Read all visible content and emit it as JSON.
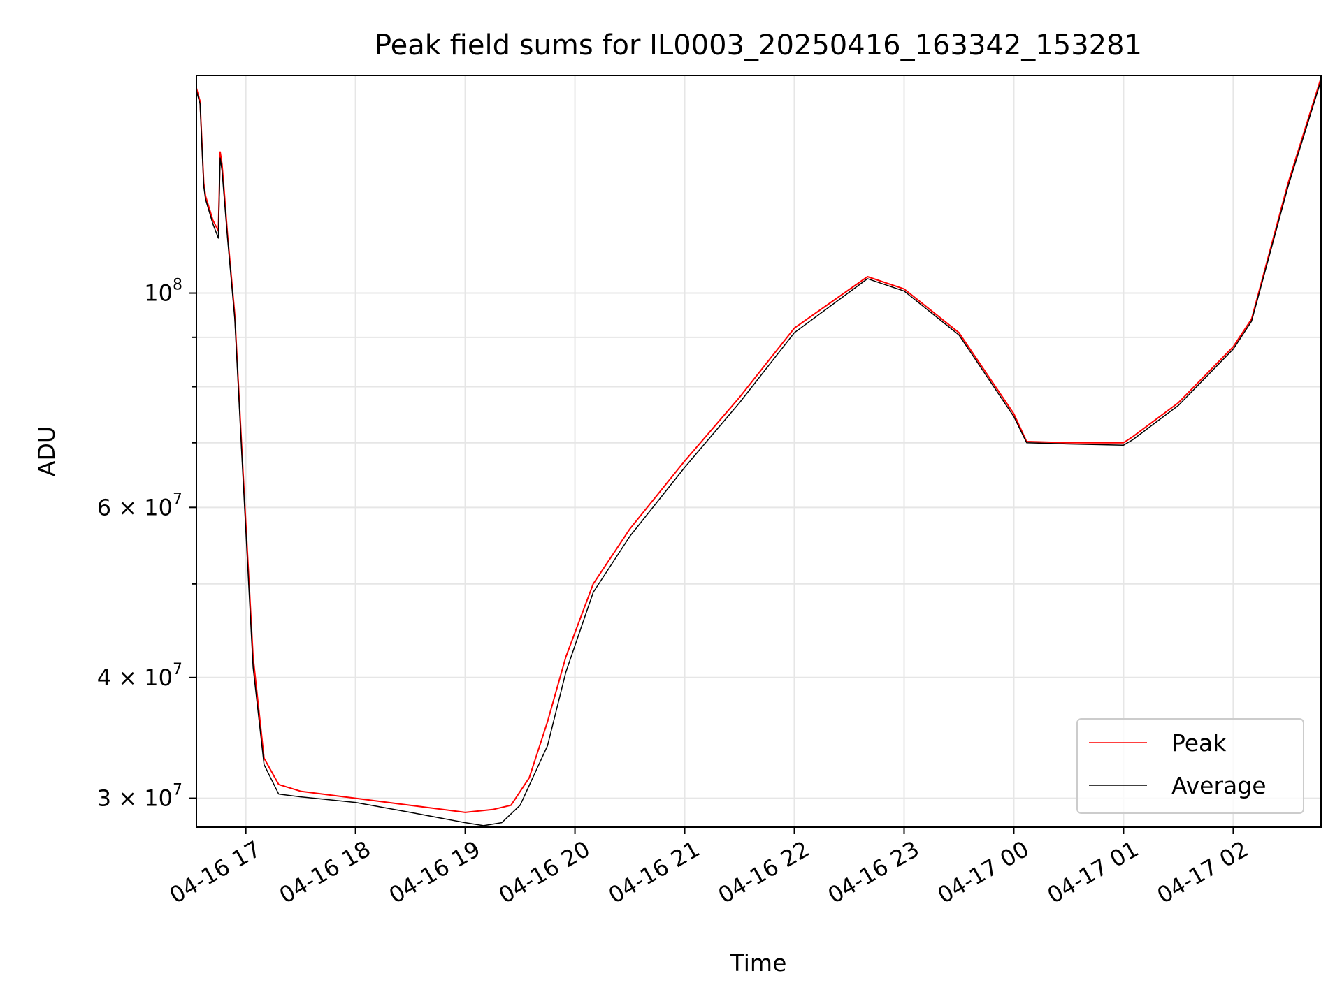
{
  "chart_data": {
    "type": "line",
    "title": "Peak field sums for IL0003_20250416_163342_153281",
    "xlabel": "Time",
    "ylabel": "ADU",
    "yscale": "log",
    "ylim": [
      28000000,
      168000000
    ],
    "xlim": [
      "2025-04-16 16:33",
      "2025-04-17 02:48"
    ],
    "x_ticks": [
      {
        "t": "2025-04-16 17:00",
        "label": "04-16 17"
      },
      {
        "t": "2025-04-16 18:00",
        "label": "04-16 18"
      },
      {
        "t": "2025-04-16 19:00",
        "label": "04-16 19"
      },
      {
        "t": "2025-04-16 20:00",
        "label": "04-16 20"
      },
      {
        "t": "2025-04-16 21:00",
        "label": "04-16 21"
      },
      {
        "t": "2025-04-16 22:00",
        "label": "04-16 22"
      },
      {
        "t": "2025-04-16 23:00",
        "label": "04-16 23"
      },
      {
        "t": "2025-04-17 00:00",
        "label": "04-17 00"
      },
      {
        "t": "2025-04-17 01:00",
        "label": "04-17 01"
      },
      {
        "t": "2025-04-17 02:00",
        "label": "04-17 02"
      }
    ],
    "y_major_ticks": [
      {
        "v": 30000000,
        "mant": "3",
        "exp": "7"
      },
      {
        "v": 40000000,
        "mant": "4",
        "exp": "7"
      },
      {
        "v": 60000000,
        "mant": "6",
        "exp": "7"
      },
      {
        "v": 100000000,
        "mant": "",
        "exp": "8"
      }
    ],
    "y_minor_ticks": [
      50000000,
      70000000,
      80000000,
      90000000
    ],
    "grid": true,
    "legend": {
      "position": "lower right"
    },
    "series": [
      {
        "name": "Peak",
        "color": "#ff0000",
        "x": [
          "2025-04-16 16:33",
          "2025-04-16 16:35",
          "2025-04-16 16:37",
          "2025-04-16 16:38",
          "2025-04-16 16:42",
          "2025-04-16 16:45",
          "2025-04-16 16:46",
          "2025-04-16 16:47",
          "2025-04-16 16:48",
          "2025-04-16 16:50",
          "2025-04-16 16:54",
          "2025-04-16 16:58",
          "2025-04-16 17:04",
          "2025-04-16 17:10",
          "2025-04-16 17:18",
          "2025-04-16 17:30",
          "2025-04-16 18:00",
          "2025-04-16 18:30",
          "2025-04-16 19:00",
          "2025-04-16 19:15",
          "2025-04-16 19:25",
          "2025-04-16 19:35",
          "2025-04-16 19:45",
          "2025-04-16 19:55",
          "2025-04-16 20:10",
          "2025-04-16 20:30",
          "2025-04-16 21:00",
          "2025-04-16 21:30",
          "2025-04-16 22:00",
          "2025-04-16 22:40",
          "2025-04-16 23:00",
          "2025-04-16 23:30",
          "2025-04-17 00:00",
          "2025-04-17 00:07",
          "2025-04-17 00:30",
          "2025-04-17 01:00",
          "2025-04-17 01:05",
          "2025-04-17 01:30",
          "2025-04-17 02:00",
          "2025-04-17 02:10",
          "2025-04-17 02:30",
          "2025-04-17 02:48"
        ],
        "y": [
          163000000,
          158000000,
          130000000,
          126000000,
          119000000,
          116000000,
          140000000,
          136000000,
          129000000,
          115000000,
          95000000,
          68000000,
          42000000,
          33000000,
          31000000,
          30500000,
          30000000,
          29500000,
          29000000,
          29200000,
          29500000,
          31500000,
          36000000,
          42000000,
          50000000,
          57000000,
          67000000,
          78000000,
          92000000,
          104000000,
          101000000,
          91000000,
          75000000,
          70200000,
          70000000,
          70000000,
          71000000,
          77000000,
          88000000,
          94000000,
          130000000,
          167000000
        ]
      },
      {
        "name": "Average",
        "color": "#000000",
        "x": [
          "2025-04-16 16:33",
          "2025-04-16 16:35",
          "2025-04-16 16:37",
          "2025-04-16 16:38",
          "2025-04-16 16:42",
          "2025-04-16 16:45",
          "2025-04-16 16:46",
          "2025-04-16 16:47",
          "2025-04-16 16:48",
          "2025-04-16 16:50",
          "2025-04-16 16:54",
          "2025-04-16 16:58",
          "2025-04-16 17:04",
          "2025-04-16 17:10",
          "2025-04-16 17:18",
          "2025-04-16 17:30",
          "2025-04-16 18:00",
          "2025-04-16 18:30",
          "2025-04-16 19:00",
          "2025-04-16 19:10",
          "2025-04-16 19:20",
          "2025-04-16 19:30",
          "2025-04-16 19:45",
          "2025-04-16 19:55",
          "2025-04-16 20:10",
          "2025-04-16 20:30",
          "2025-04-16 21:00",
          "2025-04-16 21:30",
          "2025-04-16 22:00",
          "2025-04-16 22:40",
          "2025-04-16 23:00",
          "2025-04-16 23:30",
          "2025-04-17 00:00",
          "2025-04-17 00:07",
          "2025-04-17 00:30",
          "2025-04-17 01:00",
          "2025-04-17 01:05",
          "2025-04-17 01:30",
          "2025-04-17 02:00",
          "2025-04-17 02:10",
          "2025-04-17 02:30",
          "2025-04-17 02:48"
        ],
        "y": [
          162000000,
          157000000,
          129000000,
          125000000,
          118000000,
          114000000,
          138000000,
          134000000,
          127000000,
          114000000,
          94000000,
          67000000,
          41000000,
          32500000,
          30300000,
          30100000,
          29700000,
          29000000,
          28300000,
          28100000,
          28300000,
          29500000,
          34000000,
          40500000,
          49000000,
          56000000,
          66000000,
          77000000,
          91000000,
          103500000,
          100500000,
          90500000,
          74500000,
          70000000,
          69800000,
          69600000,
          70500000,
          76500000,
          87500000,
          93500000,
          129000000,
          166000000
        ]
      }
    ]
  }
}
